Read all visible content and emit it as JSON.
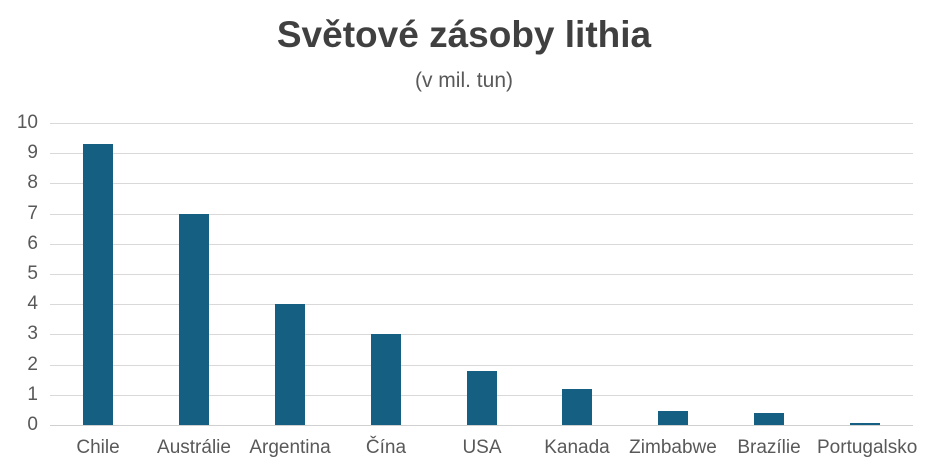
{
  "title": "Světové zásoby lithia",
  "subtitle": "(v mil. tun)",
  "colors": {
    "bar": "#156082",
    "title_text": "#404040",
    "axis_text": "#595959",
    "gridline": "#d9d9d9",
    "background": "#ffffff"
  },
  "chart_data": {
    "type": "bar",
    "title": "Světové zásoby lithia",
    "subtitle": "(v mil. tun)",
    "categories": [
      "Chile",
      "Austrálie",
      "Argentina",
      "Čína",
      "USA",
      "Kanada",
      "Zimbabwe",
      "Brazílie",
      "Portugalsko"
    ],
    "values": [
      9.3,
      7.0,
      4.0,
      3.0,
      1.8,
      1.2,
      0.48,
      0.39,
      0.06
    ],
    "xlabel": "",
    "ylabel": "",
    "ylim": [
      0,
      10
    ],
    "ytick_step": 1,
    "ytick_labels": [
      "0",
      "1",
      "2",
      "3",
      "4",
      "5",
      "6",
      "7",
      "8",
      "9",
      "10"
    ],
    "grid": true,
    "legend": false,
    "bar_color": "#156082"
  }
}
